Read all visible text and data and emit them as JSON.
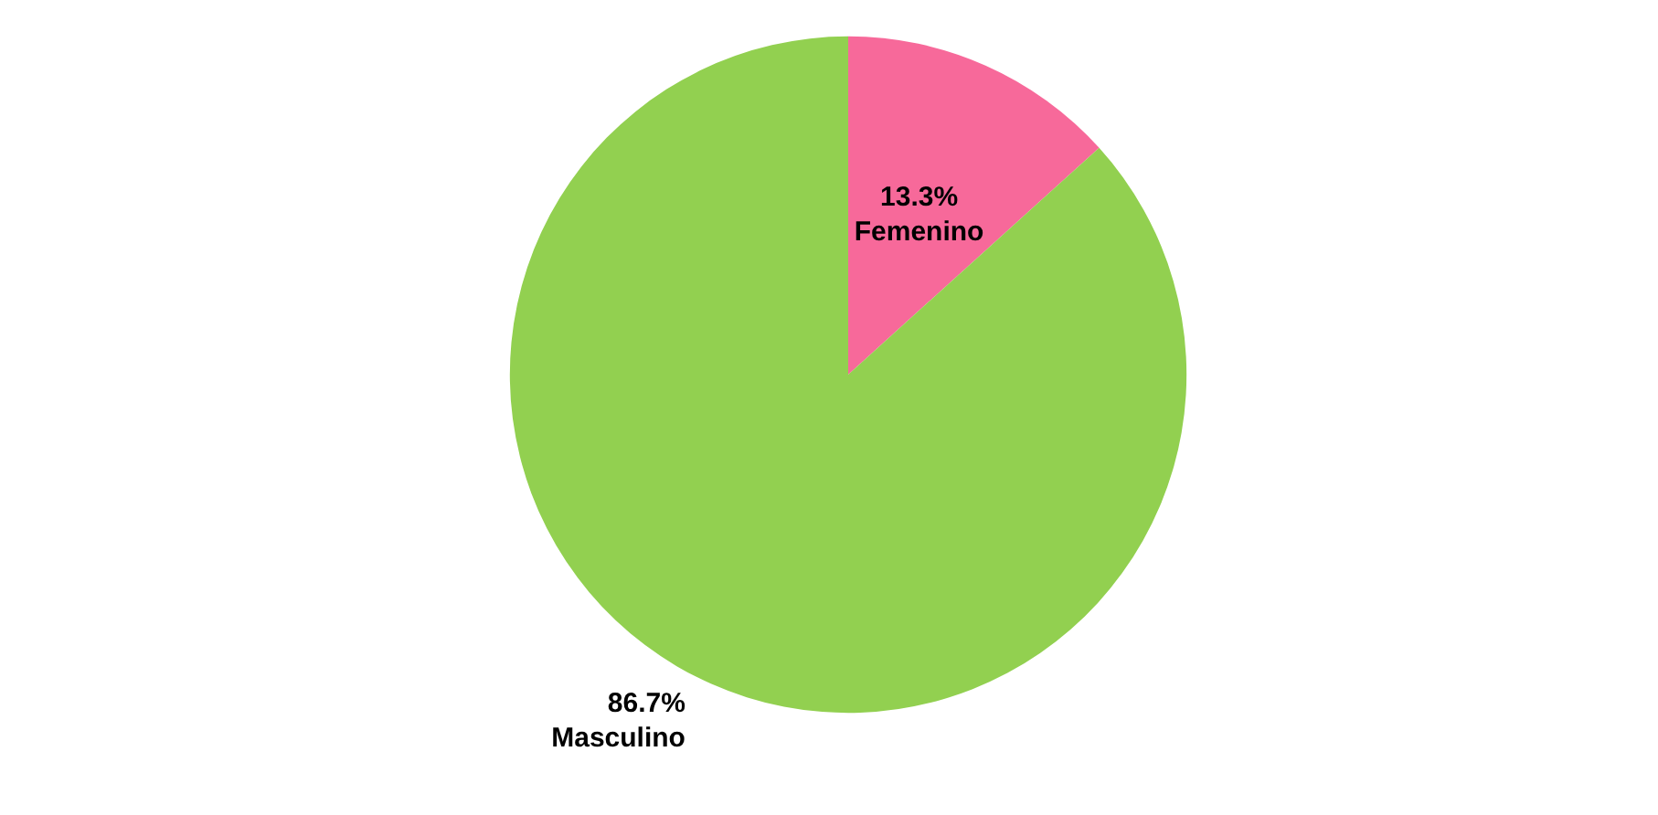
{
  "chart_data": {
    "type": "pie",
    "categories": [
      "Femenino",
      "Masculino"
    ],
    "values": [
      13.3,
      86.7
    ],
    "colors": [
      "#f7699a",
      "#92d050"
    ],
    "value_labels": [
      "13.3%",
      "86.7%"
    ],
    "legend": false
  }
}
